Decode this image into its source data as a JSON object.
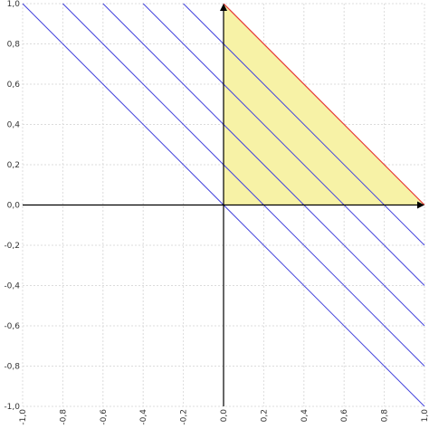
{
  "chart_data": {
    "type": "line",
    "title": "",
    "xlabel": "",
    "ylabel": "",
    "xlim": [
      -1.0,
      1.0
    ],
    "ylim": [
      -1.0,
      1.0
    ],
    "grid": true,
    "x_ticks": [
      "-1,0",
      "-0,8",
      "-0,6",
      "-0,4",
      "-0,2",
      "0,0",
      "0,2",
      "0,4",
      "0,6",
      "0,8",
      "1,0"
    ],
    "y_ticks": [
      "1,0",
      "0,8",
      "0,6",
      "0,4",
      "0,2",
      "0,0",
      "-0,2",
      "-0,4",
      "-0,6",
      "-0,8",
      "-1,0"
    ],
    "lines": [
      {
        "x": [
          -1.0,
          1.0
        ],
        "y": [
          1.0,
          -1.0
        ]
      },
      {
        "x": [
          -0.8,
          1.0
        ],
        "y": [
          1.0,
          -0.8
        ]
      },
      {
        "x": [
          -0.6,
          1.0
        ],
        "y": [
          1.0,
          -0.6
        ]
      },
      {
        "x": [
          -0.4,
          1.0
        ],
        "y": [
          1.0,
          -0.4
        ]
      },
      {
        "x": [
          -0.2,
          1.0
        ],
        "y": [
          1.0,
          -0.2
        ]
      }
    ],
    "region": {
      "points": [
        [
          0,
          0
        ],
        [
          0,
          1
        ],
        [
          1,
          0
        ]
      ],
      "boundary": [
        [
          0,
          1
        ],
        [
          1,
          0
        ]
      ]
    },
    "colors": {
      "lines": "#4444dd",
      "region_fill": "#f7f2a6",
      "boundary": "#e53935",
      "axes": "#000000",
      "grid": "#dcdcdc"
    }
  }
}
